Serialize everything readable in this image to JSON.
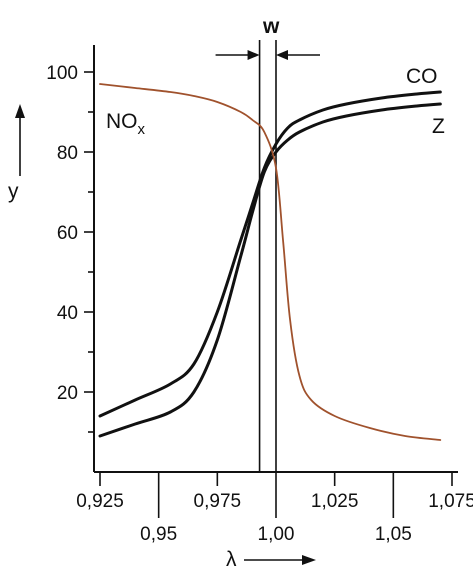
{
  "chart_data": {
    "type": "line",
    "xlabel": "λ",
    "ylabel": "y",
    "xlim": [
      0.925,
      1.075
    ],
    "ylim": [
      0,
      100
    ],
    "grid": false,
    "x_ticks_top_row": [
      {
        "value": 0.925,
        "label": "0,925"
      },
      {
        "value": 0.975,
        "label": "0,975"
      },
      {
        "value": 1.025,
        "label": "1,025"
      },
      {
        "value": 1.075,
        "label": "1,075"
      }
    ],
    "x_ticks_bottom_row": [
      {
        "value": 0.95,
        "label": "0,95"
      },
      {
        "value": 1.0,
        "label": "1,00"
      },
      {
        "value": 1.05,
        "label": "1,05"
      }
    ],
    "y_ticks": [
      {
        "value": 20,
        "label": "20"
      },
      {
        "value": 40,
        "label": "40"
      },
      {
        "value": 60,
        "label": "60"
      },
      {
        "value": 80,
        "label": "80"
      },
      {
        "value": 100,
        "label": "100"
      }
    ],
    "y_minor_ticks": [
      10,
      30,
      50,
      70,
      90
    ],
    "series": [
      {
        "name": "CO",
        "color": "#111111",
        "x": [
          0.925,
          0.94,
          0.955,
          0.965,
          0.975,
          0.985,
          0.99,
          0.995,
          1.0,
          1.005,
          1.01,
          1.02,
          1.03,
          1.045,
          1.06,
          1.07
        ],
        "y": [
          14,
          18,
          22,
          27,
          40,
          58,
          67,
          76,
          82,
          86,
          88,
          90.5,
          92,
          93.5,
          94.5,
          95
        ]
      },
      {
        "name": "Z",
        "color": "#111111",
        "x": [
          0.925,
          0.94,
          0.955,
          0.965,
          0.975,
          0.985,
          0.99,
          0.995,
          1.0,
          1.005,
          1.01,
          1.02,
          1.03,
          1.045,
          1.06,
          1.07
        ],
        "y": [
          9,
          12,
          15,
          20,
          33,
          54,
          65,
          75,
          80,
          83,
          85,
          87.5,
          89,
          90.5,
          91.5,
          92
        ]
      },
      {
        "name": "NOx",
        "color": "#a0522d",
        "x": [
          0.925,
          0.94,
          0.955,
          0.965,
          0.975,
          0.985,
          0.99,
          0.995,
          1.0,
          1.003,
          1.006,
          1.01,
          1.015,
          1.025,
          1.04,
          1.055,
          1.07
        ],
        "y": [
          97,
          96,
          95,
          94,
          92.5,
          90,
          88,
          85,
          76,
          58,
          38,
          24,
          18,
          14,
          11,
          9,
          8
        ]
      }
    ],
    "window": {
      "label": "w",
      "x_from": 0.993,
      "x_to": 1.0
    }
  },
  "labels": {
    "co": "CO",
    "z": "Z",
    "nox_main": "NO",
    "nox_sub": "x",
    "w": "w",
    "y_axis": "y",
    "x_axis": "λ"
  }
}
